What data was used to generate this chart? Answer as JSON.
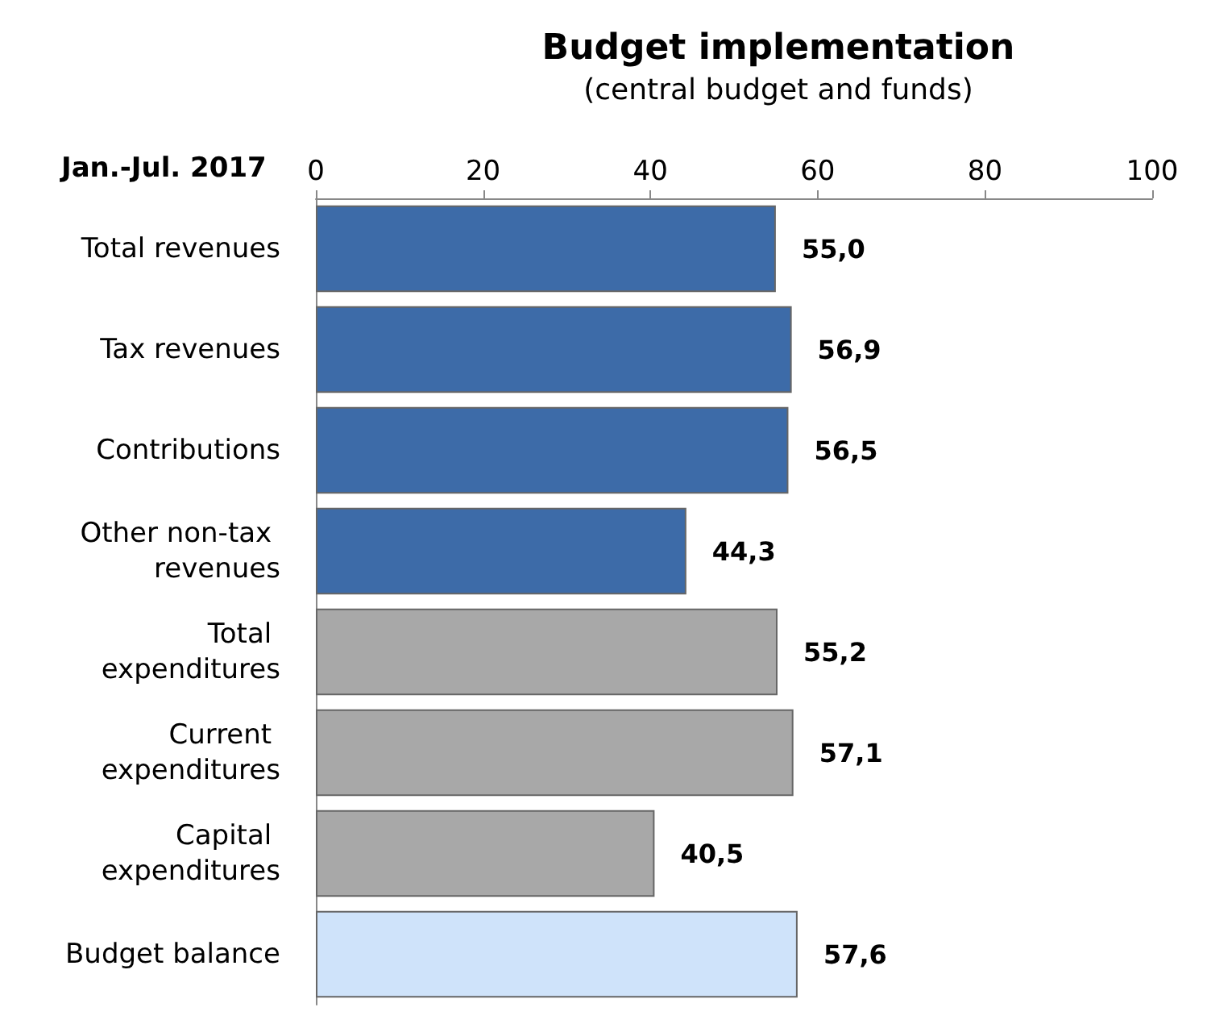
{
  "chart_data": {
    "type": "bar",
    "orientation": "horizontal",
    "title": "Budget implementation",
    "subtitle": "(central budget and funds)",
    "annotations": [
      "Jan.-Jul. 2017"
    ],
    "categories": [
      "Total revenues",
      "Tax revenues",
      "Contributions",
      "Other non-tax revenues",
      "Total expenditures",
      "Current expenditures",
      "Capital expenditures",
      "Budget balance"
    ],
    "values": [
      55.0,
      56.9,
      56.5,
      44.3,
      55.2,
      57.1,
      40.5,
      57.6
    ],
    "value_labels": [
      "55,0",
      "56,9",
      "56,5",
      "44,3",
      "55,2",
      "57,1",
      "40,5",
      "57,6"
    ],
    "colors": [
      "#3d6ba8",
      "#3d6ba8",
      "#3d6ba8",
      "#3d6ba8",
      "#a8a8a8",
      "#a8a8a8",
      "#a8a8a8",
      "#cfe3fa"
    ],
    "xlim": [
      0,
      100
    ],
    "xticks": [
      0,
      20,
      40,
      60,
      80,
      100
    ]
  }
}
